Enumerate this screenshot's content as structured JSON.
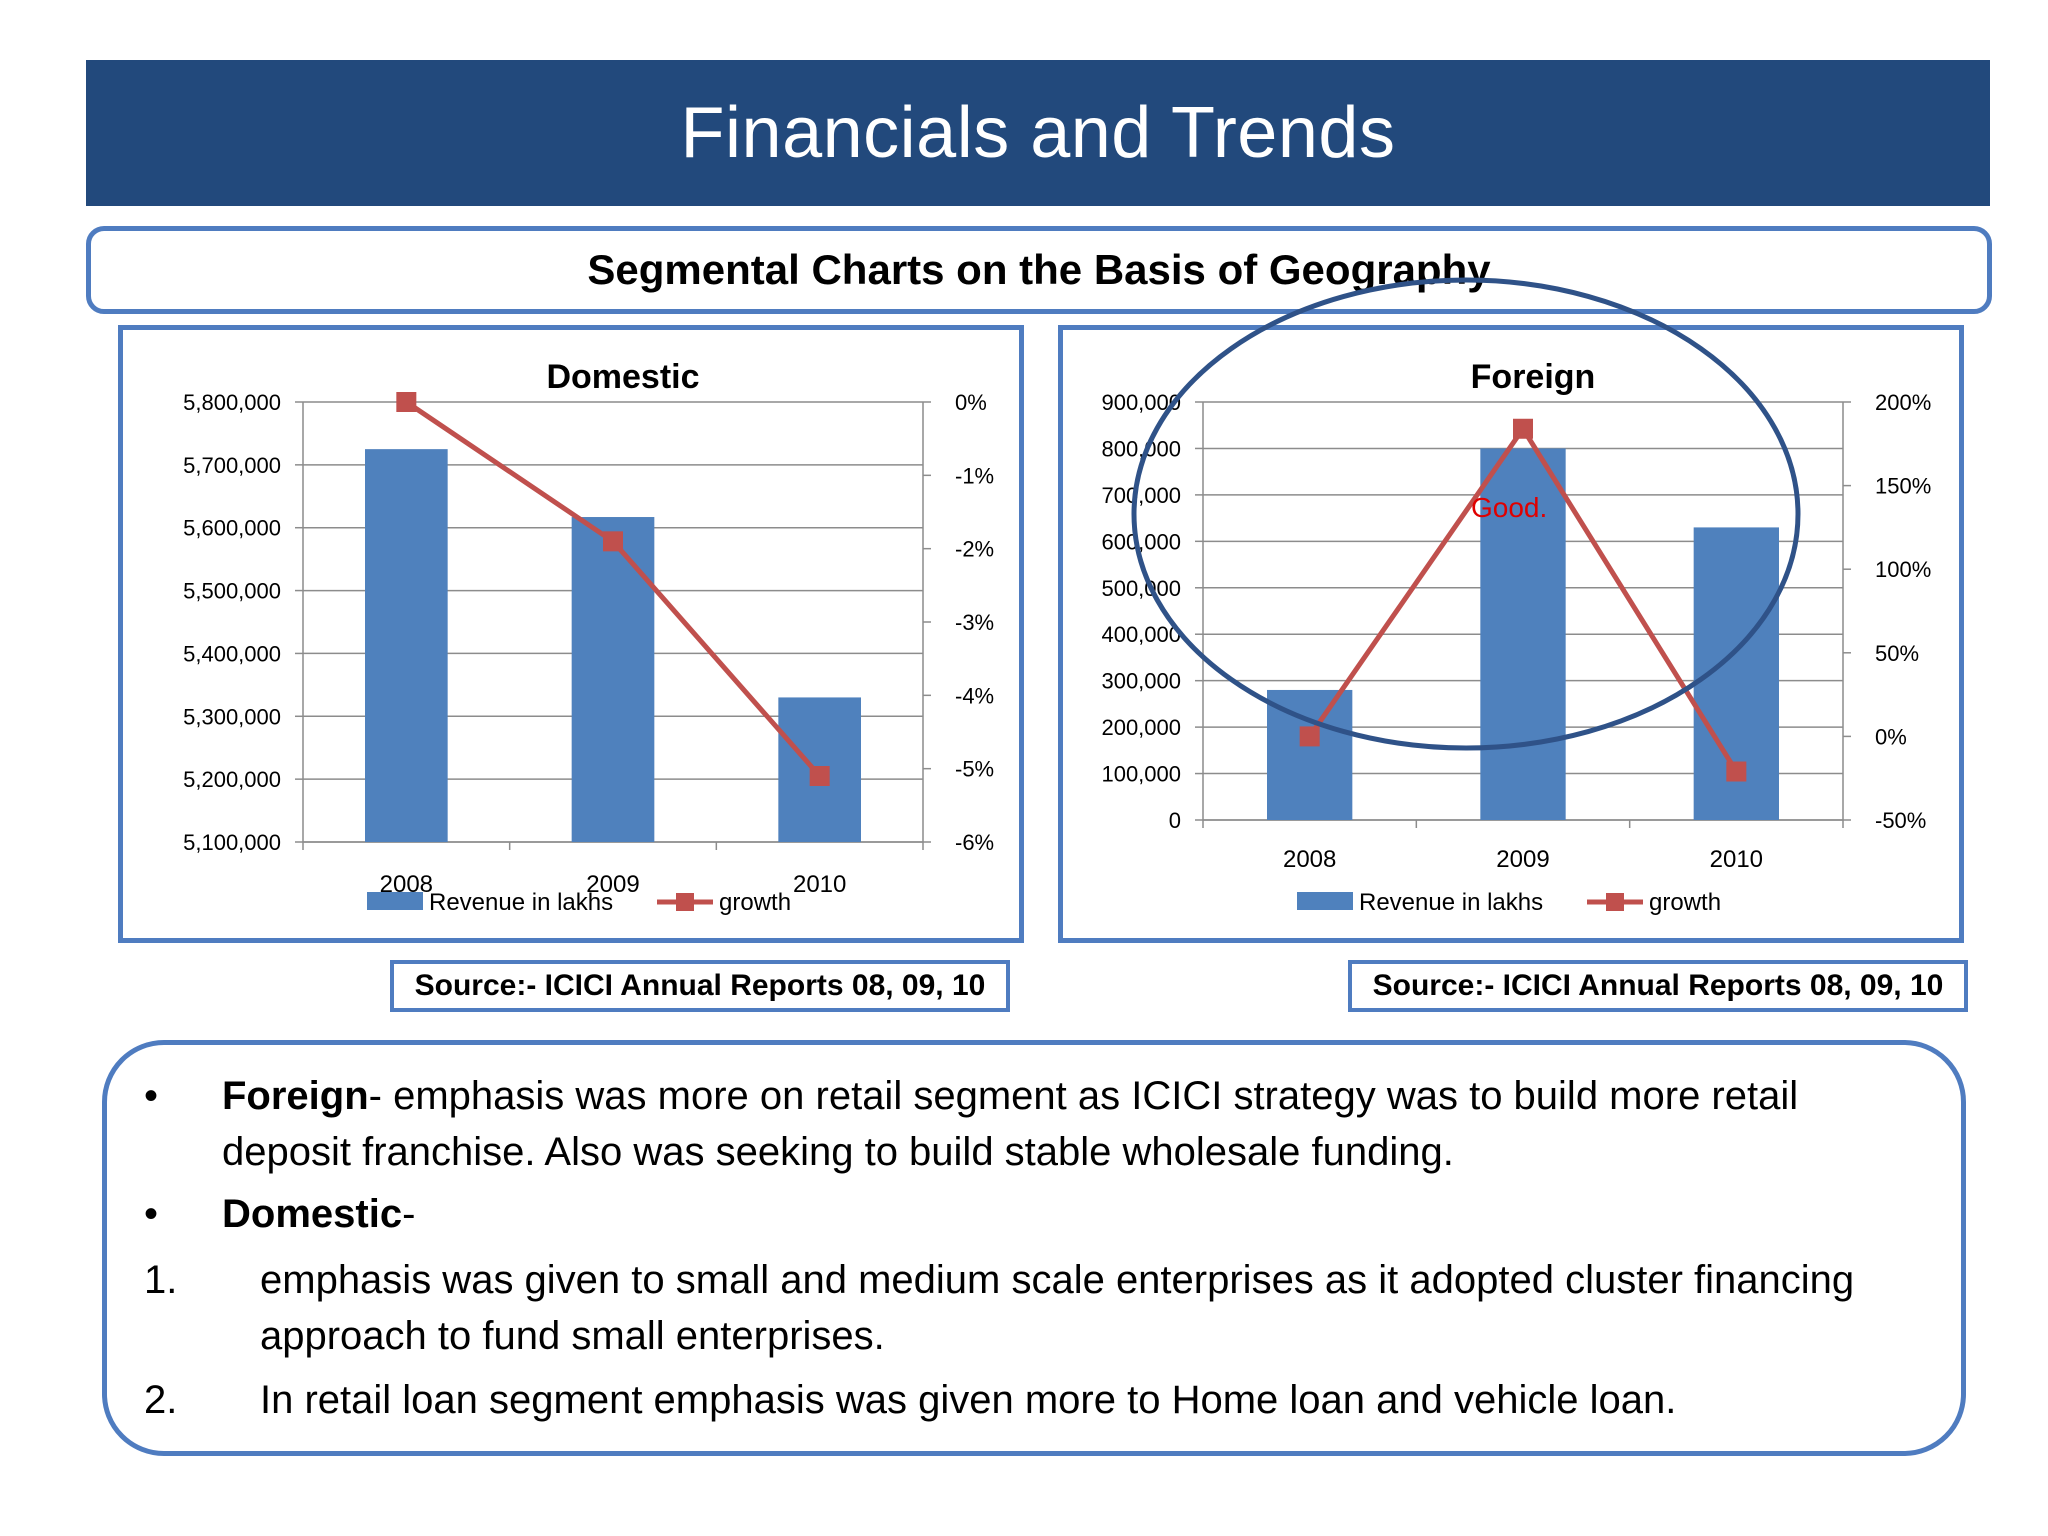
{
  "title": "Financials and Trends",
  "subtitle": "Segmental Charts on the Basis of Geography",
  "charts": [
    {
      "id": "domestic",
      "type": "bar+line",
      "title": "Domestic",
      "categories": [
        "2008",
        "2009",
        "2010"
      ],
      "bar_series": {
        "name": "Revenue in lakhs",
        "values": [
          5725000,
          5617000,
          5330000
        ]
      },
      "line_series": {
        "name": "growth",
        "values": [
          0,
          -1.9,
          -5.1
        ],
        "unit": "%"
      },
      "y_left": {
        "min": 5100000,
        "max": 5800000,
        "ticks": [
          5100000,
          5200000,
          5300000,
          5400000,
          5500000,
          5600000,
          5700000,
          5800000
        ],
        "tick_labels": [
          "5,100,000",
          "5,200,000",
          "5,300,000",
          "5,400,000",
          "5,500,000",
          "5,600,000",
          "5,700,000",
          "5,800,000"
        ]
      },
      "y_right": {
        "min": -6,
        "max": 0,
        "ticks": [
          -6,
          -5,
          -4,
          -3,
          -2,
          -1,
          0
        ],
        "tick_labels": [
          "-6%",
          "-5%",
          "-4%",
          "-3%",
          "-2%",
          "-1%",
          "0%"
        ]
      },
      "legend_position": "bottom",
      "grid": true,
      "colors": {
        "bar": "#4f81bd",
        "line": "#c0504d"
      }
    },
    {
      "id": "foreign",
      "type": "bar+line",
      "title": "Foreign",
      "categories": [
        "2008",
        "2009",
        "2010"
      ],
      "bar_series": {
        "name": "Revenue in lakhs",
        "values": [
          280000,
          800000,
          630000
        ]
      },
      "line_series": {
        "name": "growth",
        "values": [
          0,
          184,
          -21
        ],
        "unit": "%"
      },
      "y_left": {
        "min": 0,
        "max": 900000,
        "ticks": [
          0,
          100000,
          200000,
          300000,
          400000,
          500000,
          600000,
          700000,
          800000,
          900000
        ],
        "tick_labels": [
          "0",
          "100,000",
          "200,000",
          "300,000",
          "400,000",
          "500,000",
          "600,000",
          "700,000",
          "800,000",
          "900,000"
        ]
      },
      "y_right": {
        "min": -50,
        "max": 200,
        "ticks": [
          -50,
          0,
          50,
          100,
          150,
          200
        ],
        "tick_labels": [
          "-50%",
          "0%",
          "50%",
          "100%",
          "150%",
          "200%"
        ]
      },
      "annotation": "Good.",
      "legend_position": "bottom",
      "grid": true,
      "colors": {
        "bar": "#4f81bd",
        "line": "#c0504d",
        "annotation": "#e00000",
        "highlight_ellipse": "#2f5288"
      }
    }
  ],
  "sources": [
    "Source:- ICICI Annual Reports 08, 09, 10",
    "Source:- ICICI Annual Reports 08, 09, 10"
  ],
  "notes": {
    "bullet_symbol": "•",
    "foreign_label": "Foreign",
    "foreign_text_line1": "- emphasis was more on retail segment as ICICI strategy was to build more retail",
    "foreign_text_line2": "deposit franchise. Also was seeking to build stable wholesale funding.",
    "domestic_label": "Domestic",
    "domestic_suffix": "-",
    "item1_marker": "1.",
    "item1_line1": "emphasis was given to small and medium scale enterprises as it adopted cluster financing",
    "item1_line2": "approach to fund small enterprises.",
    "item2_marker": "2.",
    "item2_line1": "In retail loan segment emphasis was given more to Home loan and vehicle loan."
  }
}
